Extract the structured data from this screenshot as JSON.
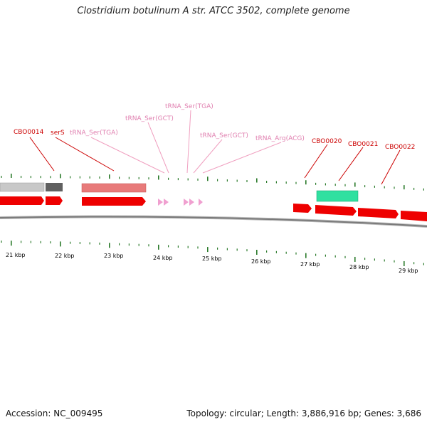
{
  "title": "Clostridium botulinum A str. ATCC 3502, complete genome",
  "footer": {
    "accession": "Accession: NC_009495",
    "summary": "Topology: circular; Length: 3,886,916 bp; Genes: 3,686"
  },
  "colors": {
    "gene_cds": "#ee0000",
    "rrna_like": "#e87a7a",
    "trna": "#f0a0d0",
    "tick": "#2a7a2a",
    "other_feature": "#30e0a0",
    "gray_feature": "#c0c0c0",
    "dark_feature": "#606060"
  },
  "labels": [
    {
      "text": "CBO0014",
      "color": "#cc0000"
    },
    {
      "text": "serS",
      "color": "#cc0000"
    },
    {
      "text": "tRNA_Ser(TGA)",
      "color": "#e080b0"
    },
    {
      "text": "tRNA_Ser(GCT)",
      "color": "#e080b0"
    },
    {
      "text": "tRNA_Ser(TGA)",
      "color": "#e080b0"
    },
    {
      "text": "tRNA_Ser(GCT)",
      "color": "#e080b0"
    },
    {
      "text": "tRNA_Arg(ACG)",
      "color": "#e080b0"
    },
    {
      "text": "CBO0020",
      "color": "#cc0000"
    },
    {
      "text": "CBO0021",
      "color": "#cc0000"
    },
    {
      "text": "CBO0022",
      "color": "#cc0000"
    }
  ],
  "kbp_labels": [
    "21 kbp",
    "22 kbp",
    "23 kbp",
    "24 kbp",
    "25 kbp",
    "26 kbp",
    "27 kbp",
    "28 kbp",
    "29 kbp"
  ]
}
